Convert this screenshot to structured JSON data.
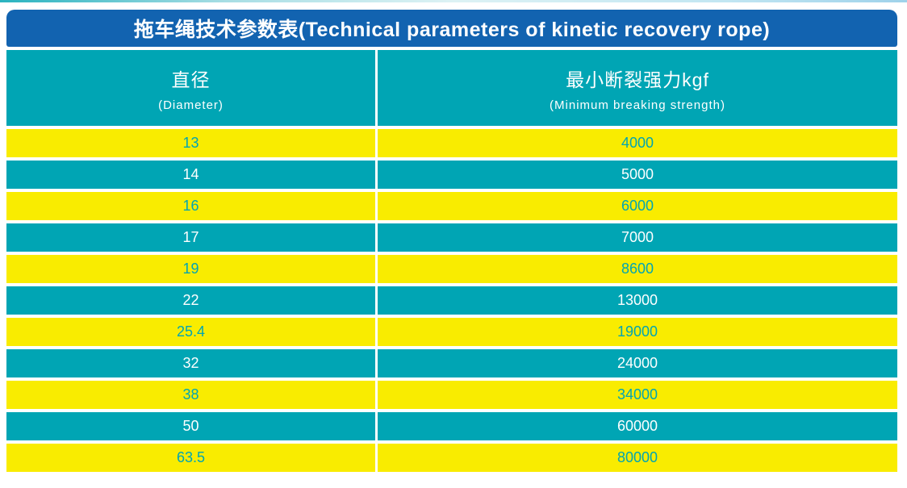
{
  "title": "拖车绳技术参数表(Technical parameters of kinetic recovery rope)",
  "colors": {
    "header_blue": "#1263b0",
    "teal": "#00a5b4",
    "yellow": "#f9ec00",
    "header_text": "#ffffff"
  },
  "table": {
    "columns": [
      {
        "zh": "直径",
        "en": "(Diameter)"
      },
      {
        "zh": "最小断裂强力kgf",
        "en": "(Minimum breaking strength)"
      }
    ],
    "rows": [
      {
        "diameter": "13",
        "strength": "4000"
      },
      {
        "diameter": "14",
        "strength": "5000"
      },
      {
        "diameter": "16",
        "strength": "6000"
      },
      {
        "diameter": "17",
        "strength": "7000"
      },
      {
        "diameter": "19",
        "strength": "8600"
      },
      {
        "diameter": "22",
        "strength": "13000"
      },
      {
        "diameter": "25.4",
        "strength": "19000"
      },
      {
        "diameter": "32",
        "strength": "24000"
      },
      {
        "diameter": "38",
        "strength": "34000"
      },
      {
        "diameter": "50",
        "strength": "60000"
      },
      {
        "diameter": "63.5",
        "strength": "80000"
      }
    ]
  }
}
